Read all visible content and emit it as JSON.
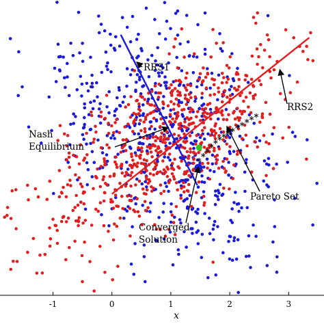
{
  "chart_data": {
    "type": "scatter",
    "title": "",
    "xlabel": "x",
    "ylabel": "",
    "xlim": [
      -1.9,
      3.6
    ],
    "ylim": [
      -2.6,
      2.5
    ],
    "x_ticks": [
      -1,
      0,
      1,
      2,
      3
    ],
    "x_tick_labels": [
      "-1",
      "0",
      "1",
      "2",
      "3"
    ],
    "grid": false,
    "legend": "none",
    "series": [
      {
        "kind": "points",
        "color": "#1a1ad6",
        "distribution": {
          "count": 620,
          "mean": [
            0.9,
            0.2
          ],
          "std_major": 1.2,
          "std_minor": 0.85,
          "major_axis_direction": [
            -0.42,
            0.9
          ],
          "correlation": -0.35
        }
      },
      {
        "kind": "points",
        "color": "#e01e1e",
        "distribution": {
          "count": 720,
          "mean": [
            0.95,
            0.05
          ],
          "std_major": 1.25,
          "std_minor": 0.55,
          "major_axis_direction": [
            0.8,
            0.6
          ],
          "correlation": 0.6
        }
      },
      {
        "name": "RRS1",
        "kind": "line",
        "color": "#1a1ad6",
        "x": [
          0.15,
          1.45
        ],
        "y": [
          1.9,
          -0.7
        ]
      },
      {
        "name": "RRS2",
        "kind": "line",
        "color": "#e01e1e",
        "x": [
          0.0,
          3.35
        ],
        "y": [
          -0.85,
          1.85
        ]
      },
      {
        "name": "Pareto Set",
        "kind": "markers",
        "marker": "star",
        "color": "#000000",
        "x": [
          1.48,
          1.55,
          1.62,
          1.69,
          1.76,
          1.83,
          1.9,
          1.97,
          2.05,
          2.13,
          2.21,
          2.29,
          2.37,
          2.45
        ],
        "y": [
          -0.28,
          -0.2,
          -0.12,
          -0.04,
          0.03,
          0.09,
          0.14,
          0.19,
          0.24,
          0.29,
          0.34,
          0.39,
          0.44,
          0.49
        ]
      },
      {
        "kind": "marker",
        "marker": "circle",
        "color": "#22cc22",
        "x": [
          1.48
        ],
        "y": [
          -0.05
        ]
      },
      {
        "kind": "marker",
        "marker": "circle",
        "color": "#1a1ad6",
        "x": [
          1.47
        ],
        "y": [
          -0.4
        ]
      }
    ],
    "annotations": [
      {
        "id": "rrs1",
        "text": "RRS1",
        "point": [
          0.42,
          1.43
        ]
      },
      {
        "id": "rrs2",
        "text": "RRS2",
        "point": [
          2.85,
          1.3
        ]
      },
      {
        "id": "nash",
        "lines": [
          "Nash",
          "Equilibrium"
        ],
        "point": [
          0.96,
          0.3
        ]
      },
      {
        "id": "pareto",
        "text": "Pareto Set",
        "point": [
          1.95,
          0.32
        ]
      },
      {
        "id": "converged",
        "lines": [
          "Converged",
          "Solution"
        ],
        "point": [
          1.47,
          -0.38
        ]
      }
    ]
  }
}
